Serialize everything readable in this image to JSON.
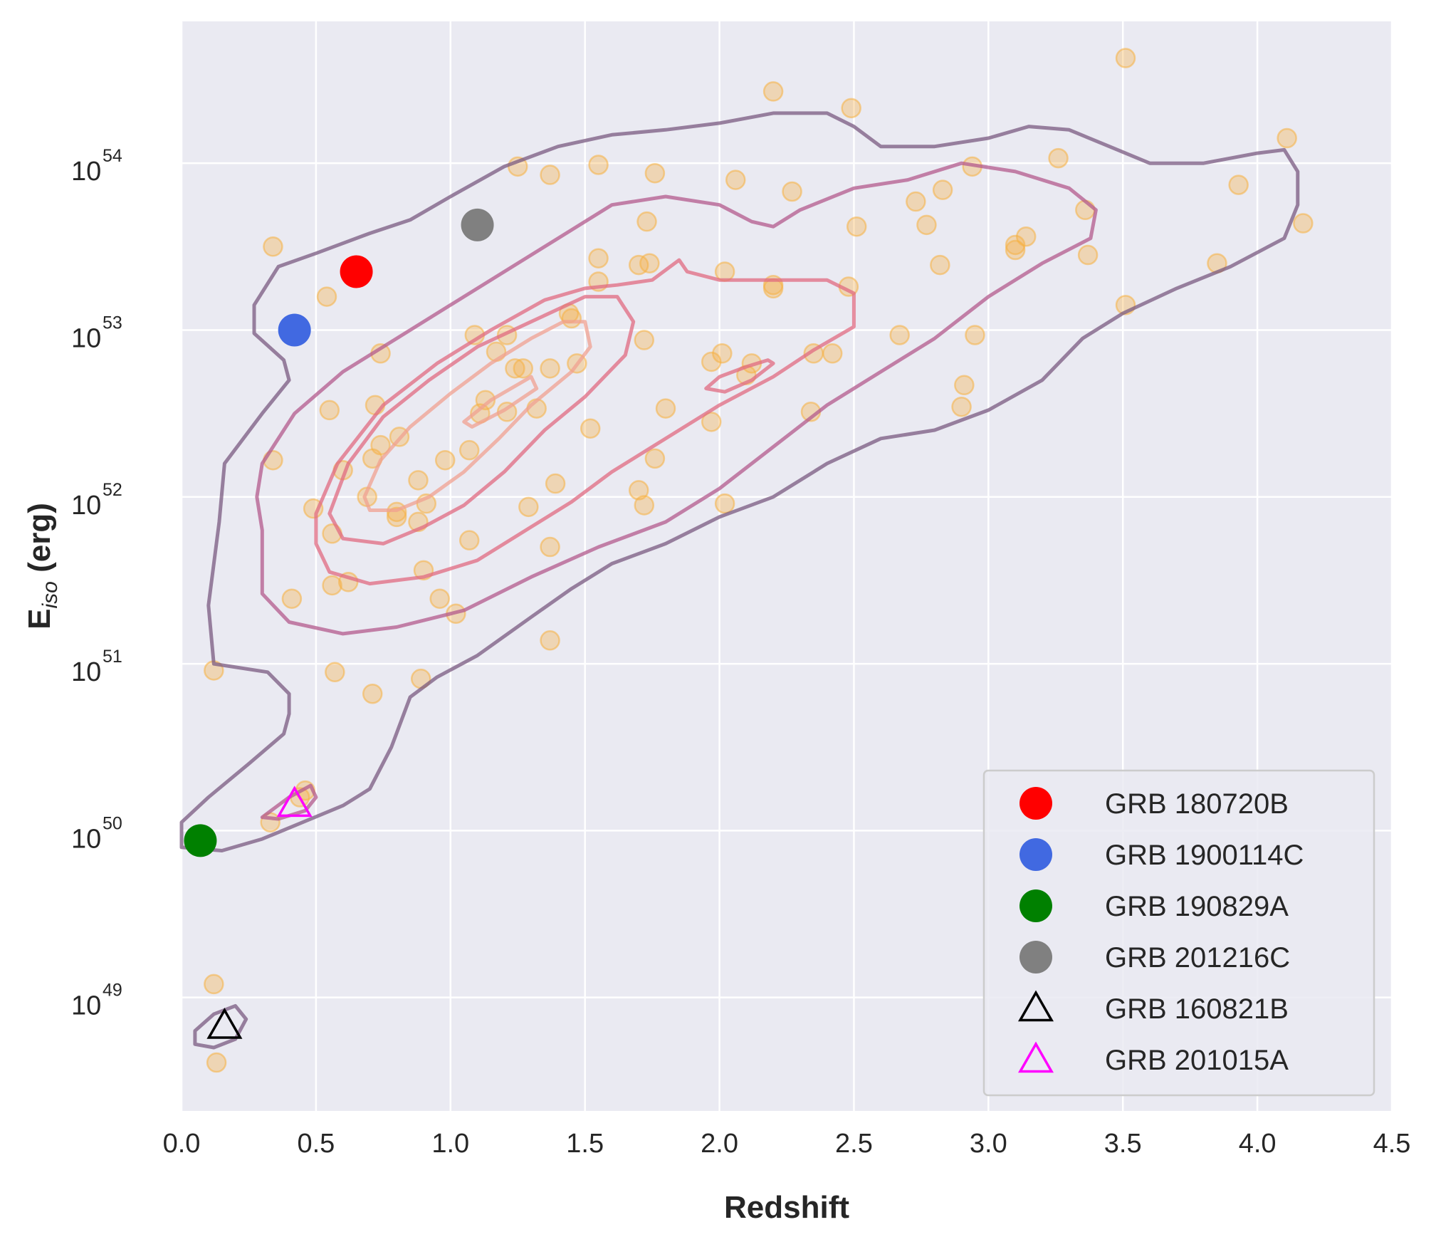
{
  "chart_data": {
    "type": "scatter",
    "xlabel": "Redshift",
    "ylabel": {
      "main": "E",
      "sub": "iso",
      "unit": " (erg)"
    },
    "xlim": [
      0.0,
      4.5
    ],
    "ylim_log10": [
      48.32,
      54.85
    ],
    "y_scale": "log",
    "grid": true,
    "legend_position": "lower-right",
    "x_ticks": [
      "0.0",
      "0.5",
      "1.0",
      "1.5",
      "2.0",
      "2.5",
      "3.0",
      "3.5",
      "4.0",
      "4.5"
    ],
    "y_ticks": [
      {
        "base": "10",
        "exp": "49"
      },
      {
        "base": "10",
        "exp": "50"
      },
      {
        "base": "10",
        "exp": "51"
      },
      {
        "base": "10",
        "exp": "52"
      },
      {
        "base": "10",
        "exp": "53"
      },
      {
        "base": "10",
        "exp": "54"
      }
    ],
    "colors": {
      "background": "#eaeaf2",
      "grid": "#ffffff",
      "sample": "#f5b041",
      "contour_outer": "#7a5a80",
      "contour_mid": "#b35a8c",
      "contour_inner": "#e06a80",
      "contour_core": "#f0a090"
    },
    "sample_points": [
      [
        0.34,
        53.5
      ],
      [
        0.54,
        53.2
      ],
      [
        0.34,
        52.22
      ],
      [
        0.55,
        52.52
      ],
      [
        0.6,
        52.16
      ],
      [
        0.49,
        51.93
      ],
      [
        0.56,
        51.78
      ],
      [
        0.62,
        51.49
      ],
      [
        0.56,
        51.47
      ],
      [
        0.41,
        51.39
      ],
      [
        0.12,
        50.96
      ],
      [
        0.57,
        50.95
      ],
      [
        0.71,
        50.82
      ],
      [
        0.74,
        52.86
      ],
      [
        0.72,
        52.55
      ],
      [
        0.74,
        52.31
      ],
      [
        0.71,
        52.23
      ],
      [
        0.69,
        52.0
      ],
      [
        0.8,
        51.91
      ],
      [
        0.8,
        51.88
      ],
      [
        0.81,
        52.36
      ],
      [
        0.88,
        52.1
      ],
      [
        0.91,
        51.96
      ],
      [
        0.88,
        51.85
      ],
      [
        0.9,
        51.56
      ],
      [
        0.96,
        51.39
      ],
      [
        1.02,
        51.3
      ],
      [
        0.89,
        50.91
      ],
      [
        0.98,
        52.22
      ],
      [
        1.07,
        52.28
      ],
      [
        1.09,
        52.97
      ],
      [
        1.13,
        52.58
      ],
      [
        1.11,
        52.5
      ],
      [
        1.17,
        52.87
      ],
      [
        1.21,
        52.97
      ],
      [
        1.24,
        52.77
      ],
      [
        1.27,
        52.77
      ],
      [
        1.21,
        52.51
      ],
      [
        1.32,
        52.53
      ],
      [
        1.37,
        52.77
      ],
      [
        1.44,
        53.1
      ],
      [
        1.45,
        53.07
      ],
      [
        1.47,
        52.8
      ],
      [
        1.07,
        51.74
      ],
      [
        1.29,
        51.94
      ],
      [
        1.39,
        52.08
      ],
      [
        1.37,
        51.7
      ],
      [
        1.25,
        53.98
      ],
      [
        1.37,
        53.93
      ],
      [
        1.55,
        53.99
      ],
      [
        1.55,
        53.43
      ],
      [
        1.55,
        53.29
      ],
      [
        1.52,
        52.41
      ],
      [
        1.37,
        51.14
      ],
      [
        1.7,
        53.39
      ],
      [
        1.73,
        53.65
      ],
      [
        1.74,
        53.4
      ],
      [
        1.76,
        53.94
      ],
      [
        1.72,
        52.94
      ],
      [
        1.8,
        52.53
      ],
      [
        1.7,
        52.04
      ],
      [
        1.72,
        51.95
      ],
      [
        1.76,
        52.23
      ],
      [
        1.97,
        52.81
      ],
      [
        2.01,
        52.86
      ],
      [
        1.97,
        52.45
      ],
      [
        2.02,
        51.96
      ],
      [
        2.02,
        53.35
      ],
      [
        2.06,
        53.9
      ],
      [
        2.1,
        52.73
      ],
      [
        2.12,
        52.8
      ],
      [
        2.2,
        53.27
      ],
      [
        2.2,
        53.25
      ],
      [
        2.2,
        54.43
      ],
      [
        2.27,
        53.83
      ],
      [
        2.35,
        52.86
      ],
      [
        2.42,
        52.86
      ],
      [
        2.34,
        52.51
      ],
      [
        2.48,
        53.26
      ],
      [
        2.49,
        54.33
      ],
      [
        2.51,
        53.62
      ],
      [
        2.67,
        52.97
      ],
      [
        2.73,
        53.77
      ],
      [
        2.77,
        53.63
      ],
      [
        2.82,
        53.39
      ],
      [
        2.83,
        53.84
      ],
      [
        2.94,
        53.98
      ],
      [
        2.95,
        52.97
      ],
      [
        2.91,
        52.67
      ],
      [
        2.9,
        52.54
      ],
      [
        3.1,
        53.51
      ],
      [
        3.1,
        53.48
      ],
      [
        3.14,
        53.56
      ],
      [
        3.26,
        54.03
      ],
      [
        3.36,
        53.72
      ],
      [
        3.37,
        53.45
      ],
      [
        3.51,
        54.63
      ],
      [
        3.51,
        53.15
      ],
      [
        3.85,
        53.4
      ],
      [
        3.93,
        53.87
      ],
      [
        4.11,
        54.15
      ],
      [
        4.17,
        53.64
      ],
      [
        0.46,
        50.24
      ],
      [
        0.33,
        50.05
      ],
      [
        0.44,
        50.2
      ],
      [
        0.12,
        49.08
      ],
      [
        0.13,
        48.61
      ]
    ],
    "contours": [
      {
        "level": "outer",
        "closed": true,
        "points": [
          [
            0.0,
            50.05
          ],
          [
            0.1,
            50.2
          ],
          [
            0.25,
            50.4
          ],
          [
            0.38,
            50.58
          ],
          [
            0.4,
            50.7
          ],
          [
            0.4,
            50.82
          ],
          [
            0.32,
            50.95
          ],
          [
            0.12,
            51.0
          ],
          [
            0.1,
            51.35
          ],
          [
            0.14,
            51.85
          ],
          [
            0.16,
            52.2
          ],
          [
            0.3,
            52.5
          ],
          [
            0.4,
            52.7
          ],
          [
            0.38,
            52.82
          ],
          [
            0.27,
            52.98
          ],
          [
            0.27,
            53.15
          ],
          [
            0.36,
            53.38
          ],
          [
            0.5,
            53.46
          ],
          [
            0.7,
            53.58
          ],
          [
            0.85,
            53.66
          ],
          [
            1.0,
            53.8
          ],
          [
            1.2,
            53.98
          ],
          [
            1.4,
            54.1
          ],
          [
            1.6,
            54.17
          ],
          [
            1.8,
            54.2
          ],
          [
            2.0,
            54.24
          ],
          [
            2.2,
            54.3
          ],
          [
            2.4,
            54.3
          ],
          [
            2.5,
            54.22
          ],
          [
            2.6,
            54.1
          ],
          [
            2.8,
            54.1
          ],
          [
            3.0,
            54.15
          ],
          [
            3.15,
            54.22
          ],
          [
            3.3,
            54.2
          ],
          [
            3.45,
            54.1
          ],
          [
            3.6,
            54.0
          ],
          [
            3.8,
            54.0
          ],
          [
            4.0,
            54.06
          ],
          [
            4.1,
            54.08
          ],
          [
            4.15,
            53.95
          ],
          [
            4.15,
            53.75
          ],
          [
            4.1,
            53.55
          ],
          [
            3.9,
            53.38
          ],
          [
            3.7,
            53.25
          ],
          [
            3.5,
            53.1
          ],
          [
            3.35,
            52.95
          ],
          [
            3.2,
            52.7
          ],
          [
            3.0,
            52.52
          ],
          [
            2.8,
            52.4
          ],
          [
            2.6,
            52.35
          ],
          [
            2.4,
            52.2
          ],
          [
            2.2,
            52.0
          ],
          [
            2.0,
            51.88
          ],
          [
            1.8,
            51.72
          ],
          [
            1.6,
            51.6
          ],
          [
            1.45,
            51.45
          ],
          [
            1.3,
            51.28
          ],
          [
            1.1,
            51.05
          ],
          [
            0.95,
            50.92
          ],
          [
            0.85,
            50.8
          ],
          [
            0.78,
            50.5
          ],
          [
            0.7,
            50.25
          ],
          [
            0.6,
            50.15
          ],
          [
            0.45,
            50.05
          ],
          [
            0.3,
            49.95
          ],
          [
            0.15,
            49.88
          ],
          [
            0.0,
            49.9
          ]
        ]
      },
      {
        "level": "outer",
        "closed": true,
        "points": [
          [
            0.05,
            48.8
          ],
          [
            0.12,
            48.9
          ],
          [
            0.2,
            48.95
          ],
          [
            0.24,
            48.87
          ],
          [
            0.2,
            48.75
          ],
          [
            0.12,
            48.7
          ],
          [
            0.05,
            48.72
          ]
        ]
      },
      {
        "level": "mid",
        "closed": true,
        "points": [
          [
            0.3,
            50.08
          ],
          [
            0.4,
            50.2
          ],
          [
            0.48,
            50.27
          ],
          [
            0.5,
            50.2
          ],
          [
            0.46,
            50.12
          ],
          [
            0.36,
            50.07
          ]
        ]
      },
      {
        "level": "mid",
        "closed": true,
        "points": [
          [
            0.3,
            52.2
          ],
          [
            0.42,
            52.5
          ],
          [
            0.6,
            52.75
          ],
          [
            0.8,
            52.95
          ],
          [
            1.0,
            53.15
          ],
          [
            1.2,
            53.35
          ],
          [
            1.4,
            53.55
          ],
          [
            1.6,
            53.75
          ],
          [
            1.8,
            53.8
          ],
          [
            2.0,
            53.75
          ],
          [
            2.12,
            53.65
          ],
          [
            2.2,
            53.62
          ],
          [
            2.3,
            53.72
          ],
          [
            2.5,
            53.85
          ],
          [
            2.7,
            53.9
          ],
          [
            2.9,
            54.0
          ],
          [
            3.1,
            53.95
          ],
          [
            3.3,
            53.85
          ],
          [
            3.4,
            53.72
          ],
          [
            3.38,
            53.55
          ],
          [
            3.2,
            53.4
          ],
          [
            3.0,
            53.2
          ],
          [
            2.8,
            52.95
          ],
          [
            2.6,
            52.75
          ],
          [
            2.4,
            52.55
          ],
          [
            2.2,
            52.3
          ],
          [
            2.0,
            52.05
          ],
          [
            1.8,
            51.85
          ],
          [
            1.55,
            51.7
          ],
          [
            1.3,
            51.52
          ],
          [
            1.05,
            51.32
          ],
          [
            0.8,
            51.22
          ],
          [
            0.6,
            51.18
          ],
          [
            0.4,
            51.25
          ],
          [
            0.3,
            51.42
          ],
          [
            0.3,
            51.8
          ],
          [
            0.28,
            52.0
          ]
        ]
      },
      {
        "level": "inner",
        "closed": true,
        "points": [
          [
            0.5,
            51.9
          ],
          [
            0.58,
            52.2
          ],
          [
            0.75,
            52.55
          ],
          [
            0.95,
            52.8
          ],
          [
            1.15,
            53.0
          ],
          [
            1.35,
            53.18
          ],
          [
            1.5,
            53.25
          ],
          [
            1.62,
            53.27
          ],
          [
            1.75,
            53.3
          ],
          [
            1.85,
            53.42
          ],
          [
            1.88,
            53.35
          ],
          [
            2.0,
            53.3
          ],
          [
            2.2,
            53.3
          ],
          [
            2.4,
            53.3
          ],
          [
            2.5,
            53.22
          ],
          [
            2.5,
            53.02
          ],
          [
            2.35,
            52.88
          ],
          [
            2.2,
            52.72
          ],
          [
            2.0,
            52.55
          ],
          [
            1.8,
            52.35
          ],
          [
            1.6,
            52.15
          ],
          [
            1.45,
            51.97
          ],
          [
            1.3,
            51.82
          ],
          [
            1.1,
            51.62
          ],
          [
            0.9,
            51.52
          ],
          [
            0.7,
            51.48
          ],
          [
            0.55,
            51.55
          ],
          [
            0.5,
            51.72
          ]
        ]
      },
      {
        "level": "inner",
        "closed": true,
        "points": [
          [
            1.95,
            52.65
          ],
          [
            2.0,
            52.72
          ],
          [
            2.1,
            52.78
          ],
          [
            2.18,
            52.82
          ],
          [
            2.2,
            52.8
          ],
          [
            2.12,
            52.7
          ],
          [
            2.02,
            52.63
          ]
        ]
      },
      {
        "level": "inner",
        "closed": true,
        "points": [
          [
            0.55,
            51.9
          ],
          [
            0.62,
            52.2
          ],
          [
            0.75,
            52.48
          ],
          [
            0.92,
            52.7
          ],
          [
            1.1,
            52.9
          ],
          [
            1.3,
            53.05
          ],
          [
            1.5,
            53.2
          ],
          [
            1.62,
            53.2
          ],
          [
            1.68,
            53.05
          ],
          [
            1.65,
            52.85
          ],
          [
            1.5,
            52.6
          ],
          [
            1.35,
            52.4
          ],
          [
            1.2,
            52.15
          ],
          [
            1.05,
            51.95
          ],
          [
            0.9,
            51.82
          ],
          [
            0.75,
            51.72
          ],
          [
            0.6,
            51.75
          ]
        ]
      },
      {
        "level": "core",
        "closed": true,
        "points": [
          [
            0.68,
            52.0
          ],
          [
            0.74,
            52.22
          ],
          [
            0.85,
            52.42
          ],
          [
            1.0,
            52.62
          ],
          [
            1.15,
            52.8
          ],
          [
            1.3,
            52.95
          ],
          [
            1.42,
            53.05
          ],
          [
            1.5,
            53.05
          ],
          [
            1.52,
            52.9
          ],
          [
            1.45,
            52.75
          ],
          [
            1.3,
            52.55
          ],
          [
            1.18,
            52.35
          ],
          [
            1.05,
            52.15
          ],
          [
            0.92,
            52.0
          ],
          [
            0.8,
            51.92
          ],
          [
            0.7,
            51.92
          ]
        ]
      },
      {
        "level": "core",
        "closed": true,
        "points": [
          [
            1.05,
            52.45
          ],
          [
            1.15,
            52.58
          ],
          [
            1.3,
            52.72
          ],
          [
            1.32,
            52.65
          ],
          [
            1.2,
            52.52
          ],
          [
            1.08,
            52.42
          ]
        ]
      }
    ],
    "highlighted_grbs": [
      {
        "name": "GRB 180720B",
        "x": 0.65,
        "y": 53.35,
        "marker": "circle",
        "color": "#ff0000"
      },
      {
        "name": "GRB 1900114C",
        "x": 0.42,
        "y": 53.0,
        "marker": "circle",
        "color": "#4169e1"
      },
      {
        "name": "GRB 190829A",
        "x": 0.07,
        "y": 49.94,
        "marker": "circle",
        "color": "#008000"
      },
      {
        "name": "GRB 201216C",
        "x": 1.1,
        "y": 53.63,
        "marker": "circle",
        "color": "#808080"
      },
      {
        "name": "GRB 160821B",
        "x": 0.16,
        "y": 48.83,
        "marker": "triangle",
        "color": "#000000"
      },
      {
        "name": "GRB 201015A",
        "x": 0.42,
        "y": 50.16,
        "marker": "triangle",
        "color": "#ff00ff"
      }
    ]
  }
}
